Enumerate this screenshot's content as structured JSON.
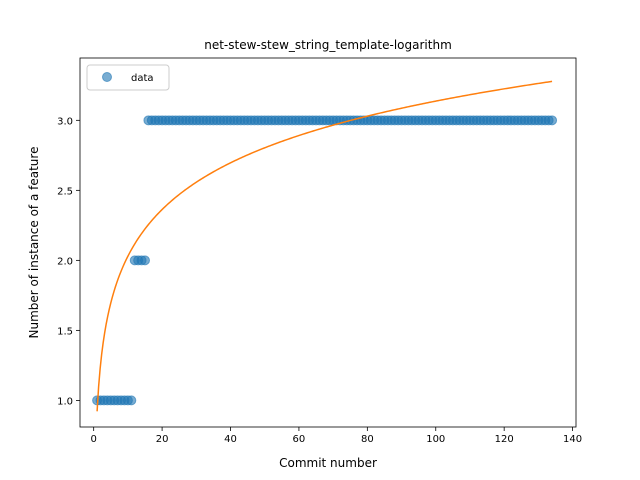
{
  "chart_data": {
    "type": "scatter",
    "title": "net-stew-stew_string_template-logarithm",
    "xlabel": "Commit number",
    "ylabel": "Number of instance of a feature",
    "xlim": [
      -4,
      141
    ],
    "ylim": [
      0.81,
      3.445
    ],
    "xticks": [
      0,
      20,
      40,
      60,
      80,
      100,
      120,
      140
    ],
    "yticks": [
      1.0,
      1.5,
      2.0,
      2.5,
      3.0
    ],
    "ytick_labels": [
      "1.0",
      "1.5",
      "2.0",
      "2.5",
      "3.0"
    ],
    "legend": {
      "location": "top-left",
      "entries": [
        "data"
      ]
    },
    "series": [
      {
        "name": "data",
        "kind": "scatter",
        "color": "#1f77b4",
        "segments": [
          {
            "x_start": 1,
            "x_end": 11,
            "y": 1
          },
          {
            "x_start": 12,
            "x_end": 15,
            "y": 2
          },
          {
            "x_start": 16,
            "x_end": 134,
            "y": 3
          }
        ]
      },
      {
        "kind": "line",
        "color": "#ff7f0e",
        "fit": {
          "form": "a + b*ln(x)",
          "a": 0.922,
          "b": 0.481,
          "x_range": [
            1,
            134
          ]
        }
      }
    ]
  }
}
